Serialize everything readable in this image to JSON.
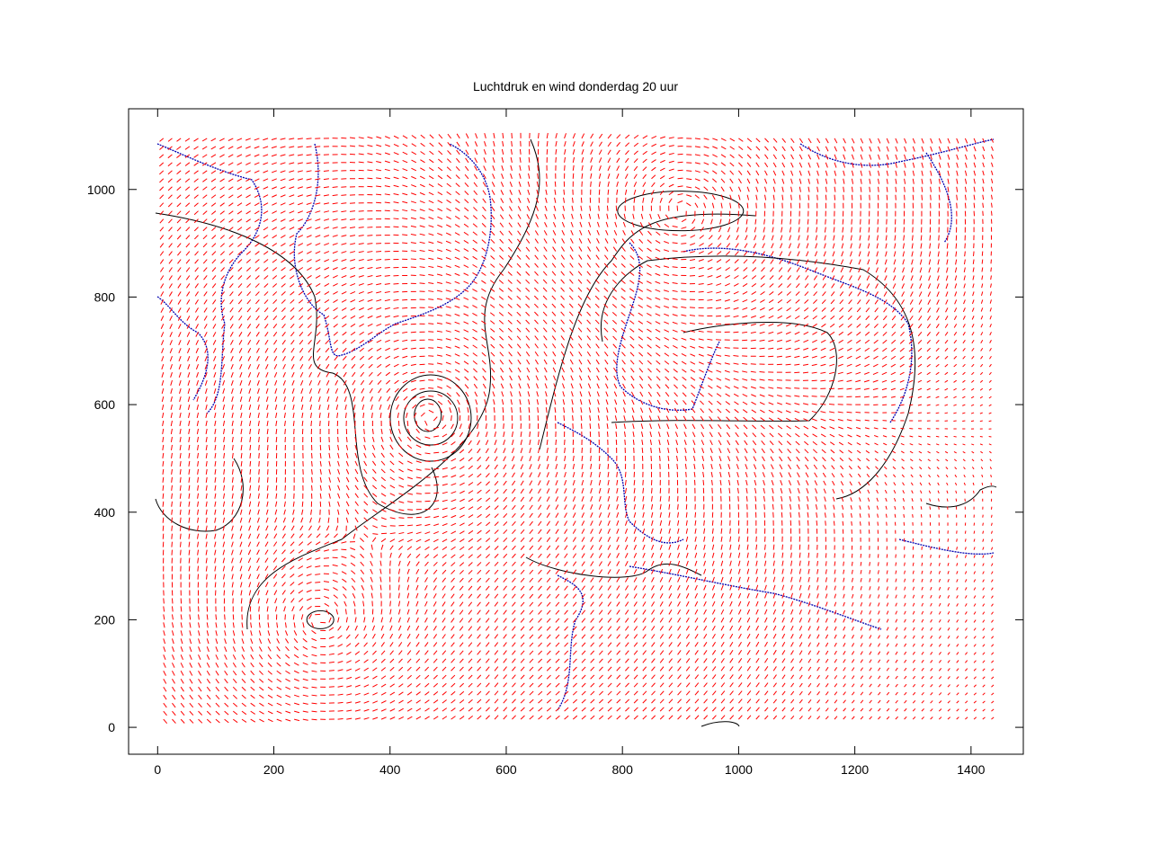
{
  "chart_data": {
    "type": "scatter",
    "title": "Luchtdruk en wind donderdag 20 uur",
    "xlabel": "",
    "ylabel": "",
    "xlim": [
      -50,
      1490
    ],
    "ylim": [
      -50,
      1150
    ],
    "grid": false,
    "x_ticks": [
      0,
      200,
      400,
      600,
      800,
      1000,
      1200,
      1400
    ],
    "y_ticks": [
      0,
      200,
      400,
      600,
      800,
      1000
    ],
    "series": [
      {
        "role": "wind vectors",
        "color": "#ff0000",
        "grid_spacing": 15,
        "x_range": [
          10,
          1440
        ],
        "y_range": [
          15,
          1095
        ]
      },
      {
        "role": "coastlines",
        "color": "#0000b0"
      },
      {
        "role": "isobars",
        "color": "#000000"
      }
    ],
    "lows": [
      {
        "x": 470,
        "y": 575
      },
      {
        "x": 280,
        "y": 200
      }
    ],
    "high": {
      "x": 900,
      "y": 960
    }
  }
}
